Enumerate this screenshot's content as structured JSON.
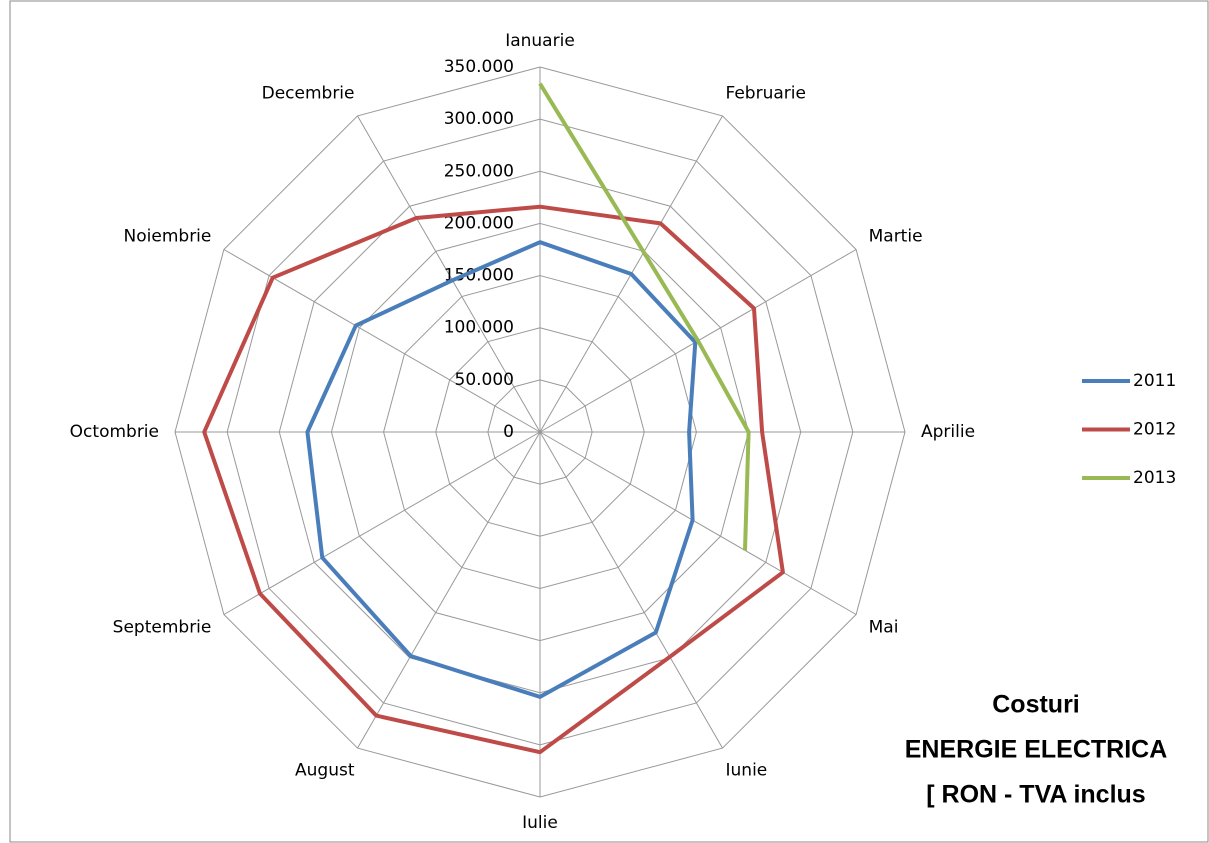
{
  "chart_data": {
    "type": "radar",
    "title": [
      "Costuri",
      "ENERGIE ELECTRICA",
      "[ RON - TVA inclus"
    ],
    "categories": [
      "Ianuarie",
      "Februarie",
      "Martie",
      "Aprilie",
      "Mai",
      "Iunie",
      "Iulie",
      "August",
      "Septembrie",
      "Octombrie",
      "Noiembrie",
      "Decembrie"
    ],
    "series": [
      {
        "name": "2011",
        "color": "#4a7ebb",
        "values": [
          182000,
          175000,
          172000,
          143000,
          169000,
          222000,
          254000,
          248000,
          241000,
          223000,
          204000,
          168000
        ]
      },
      {
        "name": "2012",
        "color": "#be4b48",
        "values": [
          216000,
          231000,
          237000,
          213000,
          269000,
          249000,
          307000,
          314000,
          310000,
          322000,
          296000,
          237000
        ]
      },
      {
        "name": "2013",
        "color": "#98b954",
        "values": [
          334000,
          199000,
          175000,
          200000,
          227000,
          null,
          null,
          null,
          null,
          null,
          null,
          null
        ]
      }
    ],
    "ylim": [
      0,
      350000
    ],
    "yticks": [
      0,
      {
        "value": 50000,
        "label": "50.000"
      },
      {
        "value": 100000,
        "label": "100.000"
      },
      {
        "value": 150000,
        "label": "150.000"
      },
      {
        "value": 200000,
        "label": "200.000"
      },
      {
        "value": 250000,
        "label": "250.000"
      },
      {
        "value": 300000,
        "label": "300.000"
      },
      {
        "value": 350000,
        "label": "350.000"
      }
    ],
    "grid": true,
    "legend": "right"
  }
}
